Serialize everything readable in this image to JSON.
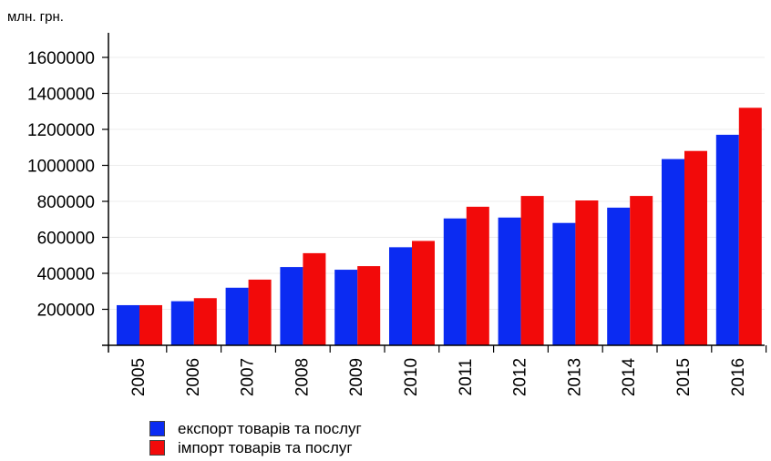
{
  "chart_data": {
    "type": "bar",
    "unit_label": "млн. грн.",
    "categories": [
      "2005",
      "2006",
      "2007",
      "2008",
      "2009",
      "2010",
      "2011",
      "2012",
      "2013",
      "2014",
      "2015",
      "2016"
    ],
    "series": [
      {
        "name": "експорт товарів та послуг",
        "color": "#0b2bf2",
        "values": [
          223000,
          245000,
          320000,
          435000,
          420000,
          545000,
          705000,
          710000,
          680000,
          765000,
          1035000,
          1170000
        ]
      },
      {
        "name": "імпорт товарів та послуг",
        "color": "#f20a0a",
        "values": [
          223000,
          262000,
          365000,
          512000,
          440000,
          580000,
          770000,
          830000,
          805000,
          830000,
          1080000,
          1320000
        ]
      }
    ],
    "yticks": [
      "1600000",
      "1400000",
      "1200000",
      "1000000",
      "800000",
      "600000",
      "400000",
      "200000"
    ],
    "ylim": [
      0,
      1700000
    ],
    "legend_position": "bottom-left",
    "grid": true
  }
}
